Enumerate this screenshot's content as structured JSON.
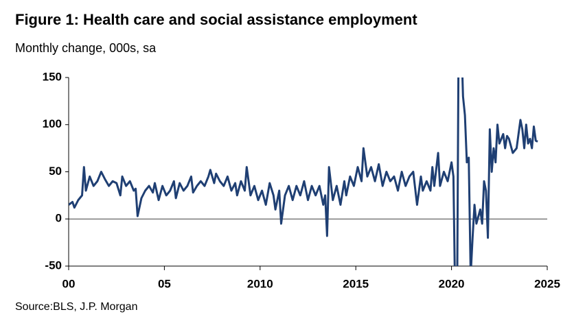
{
  "chart_data": {
    "type": "line",
    "title": "Figure 1: Health care and social assistance employment",
    "subtitle": "Monthly change, 000s, sa",
    "source": "Source:BLS,  J.P. Morgan",
    "color": "#1f3f73",
    "x": [
      2000.0,
      2000.2,
      2000.3,
      2000.5,
      2000.7,
      2000.8,
      2000.9,
      2001.1,
      2001.3,
      2001.5,
      2001.7,
      2001.9,
      2002.1,
      2002.3,
      2002.5,
      2002.7,
      2002.8,
      2003.0,
      2003.2,
      2003.4,
      2003.5,
      2003.6,
      2003.8,
      2004.0,
      2004.2,
      2004.4,
      2004.5,
      2004.7,
      2004.9,
      2005.1,
      2005.3,
      2005.5,
      2005.6,
      2005.8,
      2006.0,
      2006.2,
      2006.4,
      2006.5,
      2006.7,
      2006.9,
      2007.1,
      2007.3,
      2007.4,
      2007.6,
      2007.7,
      2007.9,
      2008.1,
      2008.3,
      2008.5,
      2008.7,
      2008.8,
      2009.0,
      2009.2,
      2009.3,
      2009.5,
      2009.7,
      2009.9,
      2010.1,
      2010.3,
      2010.5,
      2010.7,
      2010.8,
      2011.0,
      2011.1,
      2011.3,
      2011.5,
      2011.7,
      2011.9,
      2012.1,
      2012.3,
      2012.5,
      2012.7,
      2012.9,
      2013.1,
      2013.3,
      2013.4,
      2013.5,
      2013.6,
      2013.8,
      2014.0,
      2014.2,
      2014.4,
      2014.5,
      2014.7,
      2014.9,
      2015.1,
      2015.3,
      2015.4,
      2015.6,
      2015.8,
      2016.0,
      2016.2,
      2016.4,
      2016.6,
      2016.8,
      2017.0,
      2017.2,
      2017.4,
      2017.6,
      2017.8,
      2018.0,
      2018.2,
      2018.4,
      2018.5,
      2018.7,
      2018.9,
      2019.0,
      2019.1,
      2019.3,
      2019.4,
      2019.6,
      2019.8,
      2020.0,
      2020.1,
      2020.2,
      2020.3,
      2020.4,
      2020.5,
      2020.6,
      2020.7,
      2020.8,
      2020.9,
      2021.0,
      2021.1,
      2021.2,
      2021.3,
      2021.5,
      2021.6,
      2021.7,
      2021.8,
      2021.9,
      2022.0,
      2022.1,
      2022.2,
      2022.3,
      2022.4,
      2022.5,
      2022.7,
      2022.8,
      2022.9,
      2023.0,
      2023.2,
      2023.4,
      2023.6,
      2023.7,
      2023.8,
      2023.9,
      2024.0,
      2024.1,
      2024.2,
      2024.3,
      2024.4,
      2024.5
    ],
    "values": [
      15,
      18,
      12,
      20,
      25,
      55,
      30,
      45,
      35,
      40,
      50,
      42,
      35,
      40,
      38,
      25,
      45,
      35,
      40,
      30,
      32,
      3,
      22,
      30,
      35,
      28,
      38,
      20,
      35,
      25,
      30,
      40,
      22,
      38,
      30,
      35,
      45,
      28,
      35,
      40,
      35,
      45,
      52,
      38,
      48,
      40,
      35,
      45,
      30,
      38,
      25,
      40,
      30,
      55,
      25,
      35,
      20,
      30,
      15,
      38,
      25,
      10,
      30,
      -5,
      25,
      35,
      20,
      35,
      25,
      40,
      20,
      35,
      25,
      35,
      15,
      25,
      -18,
      55,
      20,
      35,
      15,
      40,
      25,
      45,
      35,
      55,
      40,
      75,
      45,
      55,
      40,
      58,
      35,
      50,
      40,
      45,
      30,
      50,
      35,
      45,
      50,
      15,
      45,
      30,
      40,
      30,
      55,
      35,
      70,
      35,
      50,
      40,
      60,
      45,
      -100,
      -60,
      300,
      200,
      130,
      110,
      60,
      65,
      -60,
      -20,
      15,
      -5,
      10,
      -5,
      40,
      30,
      -20,
      95,
      50,
      75,
      60,
      100,
      80,
      90,
      75,
      88,
      85,
      70,
      75,
      105,
      95,
      75,
      100,
      80,
      85,
      75,
      98,
      83,
      82
    ],
    "xlim": [
      2000,
      2025
    ],
    "xticks": [
      {
        "value": 2000,
        "label": "00"
      },
      {
        "value": 2005,
        "label": "05"
      },
      2010,
      2015,
      2020,
      2025
    ],
    "ylim": [
      -50,
      150
    ],
    "yticks": [
      -50,
      0,
      50,
      100,
      150
    ],
    "zero_line": true
  }
}
